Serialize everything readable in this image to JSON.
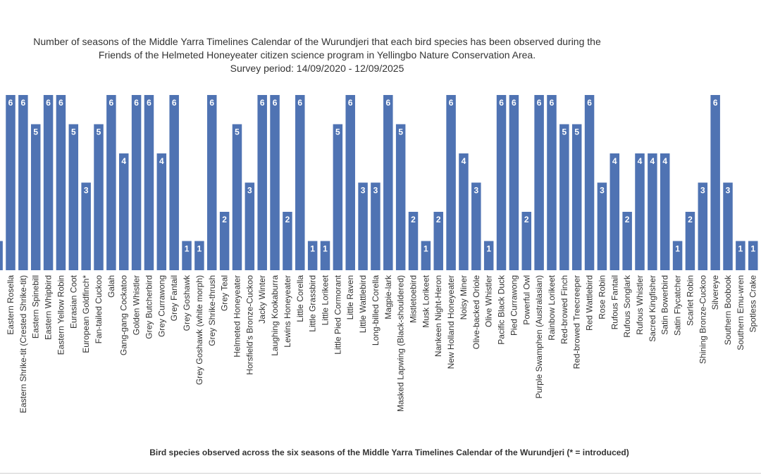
{
  "chart_data": {
    "type": "bar",
    "title_lines": [
      "Number of seasons of the Middle Yarra Timelines Calendar of the Wurundjeri that each bird species has been observed during the",
      "Friends of the Helmeted Honeyeater citizen science program in Yellingbo Nature Conservation Area.",
      "Survey period: 14/09/2020 - 12/09/2025"
    ],
    "xlabel": "Bird species observed across the six seasons of the Middle Yarra Timelines Calendar of the Wurundjeri (* = introduced)",
    "ylabel": "",
    "ylim": [
      0,
      6
    ],
    "grid": false,
    "bar_color": "#4f73b3",
    "data_label_color": "#ffffff",
    "categories": [
      "",
      "Eastern Rosella",
      "Eastern Shrike-tit (Crested Shrike-tit)",
      "Eastern Spinebill",
      "Eastern Whipbird",
      "Eastern Yellow Robin",
      "Eurasian Coot",
      "European Goldfinch*",
      "Fan-tailed Cuckoo",
      "Galah",
      "Gang-gang Cockatoo",
      "Golden Whistler",
      "Grey Butcherbird",
      "Grey Currawong",
      "Grey Fantail",
      "Grey Goshawk",
      "Grey Goshawk (white morph)",
      "Grey Shrike-thrush",
      "Grey Teal",
      "Helmeted Honeyeater",
      "Horsfield's Bronze-Cuckoo",
      "Jacky Winter",
      "Laughing Kookaburra",
      "Lewins Honeyeater",
      "Little Corella",
      "Little Grassbird",
      "Little Lorikeet",
      "Little Pied Cormorant",
      "Little Raven",
      "Little Wattlebird",
      "Long-billed Corella",
      "Magpie-lark",
      "Masked Lapwing (Black-shouldered)",
      "Mistletoebird",
      "Musk Lorikeet",
      "Nankeen Night-Heron",
      "New Holland Honeyeater",
      "Noisy Miner",
      "Olive-backed Oriole",
      "Olive Whistler",
      "Pacific Black Duck",
      "Pied Currawong",
      "Powerful Owl",
      "Purple Swamphen (Australasian)",
      "Rainbow Lorikeet",
      "Red-browed Finch",
      "Red-browed Treecreeper",
      "Red Wattlebird",
      "Rose Robin",
      "Rufous Fantail",
      "Rufous Songlark",
      "Rufous Whistler",
      "Sacred Kingfisher",
      "Satin Bowerbird",
      "Satin Flycatcher",
      "Scarlet Robin",
      "Shining Bronze-Cuckoo",
      "Silvereye",
      "Southern Boobook",
      "Southern Emu-wren",
      "Spotless Crake"
    ],
    "values": [
      1,
      6,
      6,
      5,
      6,
      6,
      5,
      3,
      5,
      6,
      4,
      6,
      6,
      4,
      6,
      1,
      1,
      6,
      2,
      5,
      3,
      6,
      6,
      2,
      6,
      1,
      1,
      5,
      6,
      3,
      3,
      6,
      5,
      2,
      1,
      2,
      6,
      4,
      3,
      1,
      6,
      6,
      2,
      6,
      6,
      5,
      5,
      6,
      3,
      4,
      2,
      4,
      4,
      4,
      1,
      2,
      3,
      6,
      3,
      1,
      1
    ],
    "data_labels": [
      "",
      "6",
      "6",
      "5",
      "6",
      "6",
      "5",
      "3",
      "5",
      "6",
      "4",
      "6",
      "6",
      "4",
      "6",
      "1",
      "1",
      "6",
      "2",
      "5",
      "3",
      "6",
      "6",
      "2",
      "6",
      "1",
      "1",
      "5",
      "6",
      "3",
      "3",
      "6",
      "5",
      "2",
      "1",
      "2",
      "6",
      "4",
      "3",
      "1",
      "6",
      "6",
      "2",
      "6",
      "6",
      "5",
      "5",
      "6",
      "3",
      "4",
      "2",
      "4",
      "4",
      "4",
      "1",
      "2",
      "3",
      "6",
      "3",
      "1",
      "1"
    ]
  }
}
